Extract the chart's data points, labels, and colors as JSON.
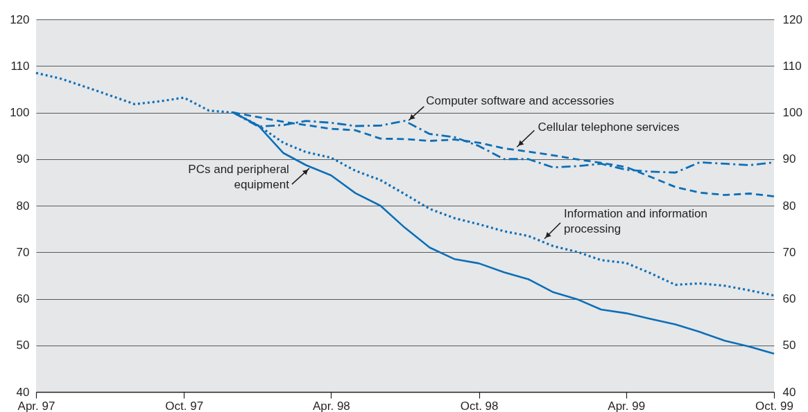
{
  "chart_data": {
    "type": "line",
    "x": [
      "1997-04",
      "1997-05",
      "1997-06",
      "1997-07",
      "1997-08",
      "1997-09",
      "1997-10",
      "1997-11",
      "1997-12",
      "1998-01",
      "1998-02",
      "1998-03",
      "1998-04",
      "1998-05",
      "1998-06",
      "1998-07",
      "1998-08",
      "1998-09",
      "1998-10",
      "1998-11",
      "1998-12",
      "1999-01",
      "1999-02",
      "1999-03",
      "1999-04",
      "1999-05",
      "1999-06",
      "1999-07",
      "1999-08",
      "1999-09",
      "1999-10"
    ],
    "series": [
      {
        "color": "#0b6fb8",
        "line_style": "dotted",
        "values": [
          108.5,
          107.3,
          105.5,
          103.7,
          101.8,
          102.4,
          103.2,
          100.4,
          100,
          97.2,
          93.5,
          91.5,
          90.3,
          87.5,
          85.5,
          82.5,
          79.3,
          77.3,
          76,
          74.5,
          73.5,
          71.3,
          70,
          68.3,
          67.7,
          65.5,
          63,
          63.3,
          62.8,
          61.8,
          60.7
        ]
      },
      {
        "color": "#0b6fb8",
        "line_style": "solid",
        "values": [
          null,
          null,
          null,
          null,
          null,
          null,
          null,
          null,
          100,
          97.2,
          91.3,
          88.7,
          86.5,
          82.7,
          80,
          75.3,
          71,
          68.5,
          67.6,
          65.7,
          64.2,
          61.4,
          59.8,
          57.7,
          56.9,
          55.7,
          54.5,
          52.9,
          51,
          49.7,
          48.2
        ]
      },
      {
        "color": "#0b6fb8",
        "line_style": "dashdot",
        "values": [
          null,
          null,
          null,
          null,
          null,
          null,
          null,
          null,
          100,
          97,
          97.3,
          98.2,
          97.8,
          97.1,
          97.2,
          98.2,
          95.4,
          94.7,
          92.8,
          90,
          90,
          88.2,
          88.5,
          89,
          87.7,
          87.3,
          87.1,
          89.3,
          89,
          88.7,
          89.3
        ]
      },
      {
        "color": "#0b6fb8",
        "line_style": "dashed",
        "values": [
          null,
          null,
          null,
          null,
          null,
          null,
          null,
          null,
          100,
          99,
          98,
          97.3,
          96.5,
          96.2,
          94.4,
          94.3,
          93.9,
          94.2,
          93.5,
          92.3,
          91.6,
          90.8,
          89.9,
          89.2,
          88.3,
          86.2,
          84,
          82.8,
          82.3,
          82.6,
          82
        ]
      }
    ],
    "xlim": [
      "1997-04",
      "1999-10"
    ],
    "xticks": [
      {
        "value": "1997-04",
        "label": "Apr. 97"
      },
      {
        "value": "1997-10",
        "label": "Oct. 97"
      },
      {
        "value": "1998-04",
        "label": "Apr. 98"
      },
      {
        "value": "1998-10",
        "label": "Oct. 98"
      },
      {
        "value": "1999-04",
        "label": "Apr. 99"
      },
      {
        "value": "1999-10",
        "label": "Oct. 99"
      }
    ],
    "ylim": [
      40,
      120
    ],
    "yticks": [
      40,
      50,
      60,
      70,
      80,
      90,
      100,
      110,
      120
    ],
    "y2lim": [
      40,
      120
    ],
    "y2ticks": [
      40,
      50,
      60,
      70,
      80,
      90,
      100,
      110,
      120
    ],
    "grid": "y",
    "annotations": [
      {
        "text": "PCs and peripheral\nequipment",
        "x": "1998-03-05",
        "y": 88
      },
      {
        "text": "Computer software and accessories",
        "x": "1998-07-06",
        "y": 98.3
      },
      {
        "text": "Cellular telephone services",
        "x": "1998-11-17",
        "y": 92.6
      },
      {
        "text": "Information and information\nprocessing",
        "x": "1998-12-21",
        "y": 72.9
      }
    ]
  }
}
